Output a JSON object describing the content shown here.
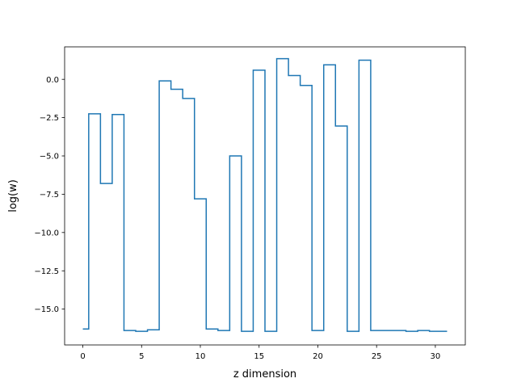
{
  "chart_data": {
    "type": "line",
    "drawstyle": "steps-mid",
    "title": "",
    "xlabel": "z dimension",
    "ylabel": "log(w)",
    "xlim": [
      -1.55,
      32.55
    ],
    "ylim": [
      -17.34,
      2.12
    ],
    "xticks": [
      0,
      5,
      10,
      15,
      20,
      25,
      30
    ],
    "yticks": [
      0.0,
      -2.5,
      -5.0,
      -7.5,
      -10.0,
      -12.5,
      -15.0
    ],
    "xtick_labels": [
      "0",
      "5",
      "10",
      "15",
      "20",
      "25",
      "30"
    ],
    "ytick_labels": [
      "0.0",
      "−2.5",
      "−5.0",
      "−7.5",
      "−10.0",
      "−12.5",
      "−15.0"
    ],
    "grid": false,
    "legend": "none",
    "line_color": "#1f77b4",
    "series": [
      {
        "x": [
          0,
          1,
          2,
          3,
          4,
          5,
          6,
          7,
          8,
          9,
          10,
          11,
          12,
          13,
          14,
          15,
          16,
          17,
          18,
          19,
          20,
          21,
          22,
          23,
          24,
          25,
          26,
          27,
          28,
          29,
          30,
          31
        ],
        "values": [
          -16.3,
          -2.25,
          -6.8,
          -2.3,
          -16.4,
          -16.45,
          -16.35,
          -0.1,
          -0.65,
          -1.25,
          -7.8,
          -16.3,
          -16.4,
          -5.0,
          -16.45,
          0.6,
          -16.45,
          1.35,
          0.25,
          -0.4,
          -16.4,
          0.95,
          -3.05,
          -16.45,
          1.25,
          -16.4,
          -16.4,
          -16.4,
          -16.45,
          -16.4,
          -16.45,
          -16.45
        ]
      }
    ]
  }
}
